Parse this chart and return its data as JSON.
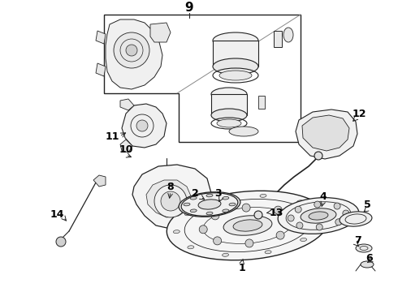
{
  "background_color": "#ffffff",
  "line_color": "#222222",
  "label_color": "#000000",
  "fig_width": 4.9,
  "fig_height": 3.6,
  "dpi": 100,
  "callout_fontsize": 9
}
